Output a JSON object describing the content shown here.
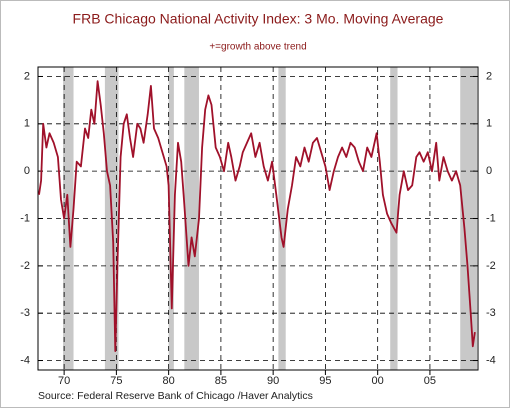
{
  "chart_data": {
    "type": "line",
    "title": "FRB Chicago National Activity Index: 3 Mo. Moving Average",
    "subtitle": "+=growth above trend",
    "source": "Source:  Federal Reserve Bank of Chicago /Haver Analytics",
    "xlim": [
      1967.5,
      2009.6
    ],
    "xticks": [
      {
        "value": 1970,
        "label": "70"
      },
      {
        "value": 1975,
        "label": "75"
      },
      {
        "value": 1980,
        "label": "80"
      },
      {
        "value": 1985,
        "label": "85"
      },
      {
        "value": 1990,
        "label": "90"
      },
      {
        "value": 1995,
        "label": "95"
      },
      {
        "value": 2000,
        "label": "00"
      },
      {
        "value": 2005,
        "label": "05"
      }
    ],
    "ylim": [
      -4.2,
      2.2
    ],
    "yticks": [
      2,
      1,
      0,
      -1,
      -2,
      -3,
      -4
    ],
    "y2lim": [
      -4.2,
      2.2
    ],
    "y2ticks": [
      2,
      1,
      0,
      -1,
      -2,
      -3,
      -4
    ],
    "grid": true,
    "recessions": [
      [
        1969.9,
        1970.9
      ],
      [
        1973.9,
        1975.2
      ],
      [
        1980.0,
        1980.5
      ],
      [
        1981.5,
        1982.9
      ],
      [
        1990.5,
        1991.2
      ],
      [
        2001.2,
        2001.9
      ],
      [
        2007.9,
        2009.5
      ]
    ],
    "recession_color": "#c8c8c8",
    "series": [
      {
        "color": "#a0112a",
        "x": [
          1967.6,
          1967.8,
          1968.0,
          1968.3,
          1968.6,
          1969.0,
          1969.4,
          1969.7,
          1970.0,
          1970.3,
          1970.6,
          1970.9,
          1971.2,
          1971.6,
          1972.0,
          1972.3,
          1972.6,
          1972.9,
          1973.2,
          1973.5,
          1973.8,
          1974.1,
          1974.4,
          1974.7,
          1974.9,
          1975.1,
          1975.4,
          1975.7,
          1976.0,
          1976.3,
          1976.6,
          1977.0,
          1977.3,
          1977.6,
          1978.0,
          1978.3,
          1978.6,
          1979.0,
          1979.4,
          1979.8,
          1980.0,
          1980.3,
          1980.6,
          1980.9,
          1981.2,
          1981.5,
          1981.9,
          1982.2,
          1982.5,
          1982.9,
          1983.2,
          1983.5,
          1983.8,
          1984.1,
          1984.5,
          1984.9,
          1985.3,
          1985.7,
          1986.0,
          1986.4,
          1986.8,
          1987.1,
          1987.5,
          1987.9,
          1988.3,
          1988.7,
          1989.1,
          1989.5,
          1989.9,
          1990.3,
          1990.8,
          1991.0,
          1991.4,
          1991.8,
          1992.2,
          1992.6,
          1993.0,
          1993.4,
          1993.8,
          1994.2,
          1994.6,
          1995.0,
          1995.4,
          1995.8,
          1996.2,
          1996.6,
          1997.0,
          1997.4,
          1997.8,
          1998.2,
          1998.6,
          1999.0,
          1999.4,
          1999.9,
          2000.2,
          2000.5,
          2000.9,
          2001.3,
          2001.8,
          2002.1,
          2002.5,
          2002.9,
          2003.3,
          2003.7,
          2004.0,
          2004.4,
          2004.8,
          2005.2,
          2005.6,
          2005.9,
          2006.3,
          2006.7,
          2007.1,
          2007.5,
          2007.9,
          2008.3,
          2008.6,
          2008.9,
          2009.1,
          2009.3
        ],
        "values": [
          -0.5,
          -0.2,
          1.0,
          0.5,
          0.8,
          0.6,
          0.3,
          -0.6,
          -1.0,
          -0.5,
          -1.6,
          -0.8,
          0.2,
          0.1,
          0.9,
          0.7,
          1.3,
          1.0,
          1.9,
          1.4,
          0.8,
          0.0,
          -0.3,
          -1.5,
          -3.8,
          -2.0,
          0.3,
          1.0,
          1.2,
          0.7,
          0.3,
          1.0,
          0.9,
          0.6,
          1.2,
          1.8,
          0.9,
          0.7,
          0.4,
          0.1,
          -0.3,
          -2.9,
          -0.5,
          0.6,
          0.2,
          -0.7,
          -2.0,
          -1.4,
          -1.8,
          -1.0,
          0.5,
          1.3,
          1.6,
          1.4,
          0.5,
          0.3,
          0.0,
          0.6,
          0.3,
          -0.2,
          0.1,
          0.4,
          0.6,
          0.8,
          0.3,
          0.6,
          0.1,
          -0.2,
          0.2,
          -0.5,
          -1.4,
          -1.6,
          -0.8,
          -0.3,
          0.3,
          0.1,
          0.5,
          0.2,
          0.6,
          0.7,
          0.4,
          0.1,
          -0.4,
          0.0,
          0.3,
          0.5,
          0.3,
          0.6,
          0.5,
          0.2,
          0.0,
          0.5,
          0.3,
          0.8,
          0.2,
          -0.5,
          -0.9,
          -1.1,
          -1.3,
          -0.5,
          0.0,
          -0.4,
          -0.3,
          0.3,
          0.4,
          0.2,
          0.4,
          0.0,
          0.6,
          -0.2,
          0.3,
          0.0,
          -0.2,
          0.0,
          -0.3,
          -1.2,
          -2.0,
          -3.0,
          -3.7,
          -3.4
        ]
      }
    ]
  }
}
